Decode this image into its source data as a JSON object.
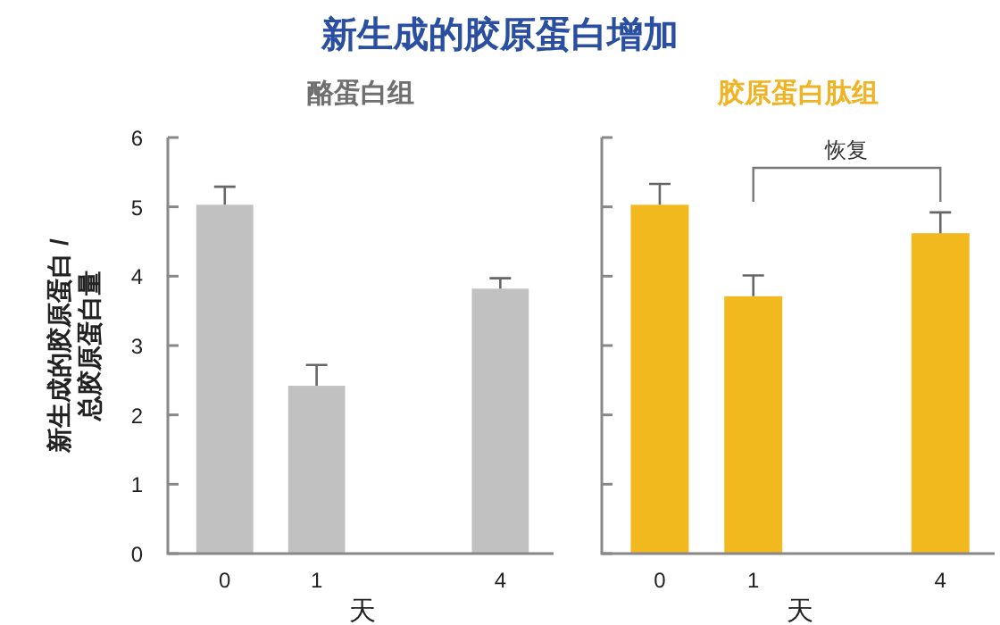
{
  "chart_data": [
    {
      "type": "bar",
      "title": "新生成的胶原蛋白增加",
      "subtitle": "酪蛋白组",
      "xlabel": "天",
      "ylabel": "新生成的胶原蛋白 /\n总胶原蛋白量",
      "categories": [
        "0",
        "1",
        null,
        "4"
      ],
      "values": [
        5.03,
        2.42,
        null,
        3.82
      ],
      "errors": [
        0.26,
        0.3,
        null,
        0.15
      ],
      "color": "#c0c1c0",
      "ylim": [
        0,
        6
      ],
      "yticks": [
        0,
        1,
        2,
        3,
        4,
        5,
        6
      ],
      "grid": false
    },
    {
      "type": "bar",
      "subtitle": "胶原蛋白肽组",
      "xlabel": "天",
      "categories": [
        "0",
        "1",
        null,
        "4"
      ],
      "values": [
        5.03,
        3.71,
        null,
        4.62
      ],
      "errors": [
        0.3,
        0.3,
        null,
        0.3
      ],
      "color": "#f2b91f",
      "ylim": [
        0,
        6
      ],
      "yticks": [
        0,
        1,
        2,
        3,
        4,
        5,
        6
      ],
      "tick_labels": "x",
      "grid": false,
      "annotations": [
        "恢复"
      ]
    }
  ]
}
